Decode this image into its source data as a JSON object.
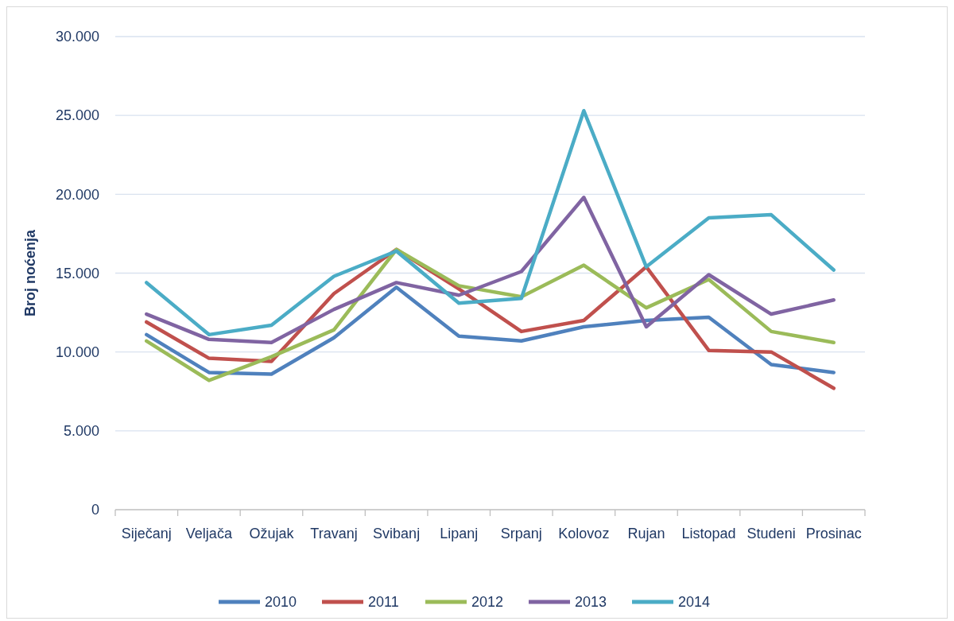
{
  "chart_data": {
    "type": "line",
    "ylabel": "Broj noćenja",
    "categories": [
      "Siječanj",
      "Veljača",
      "Ožujak",
      "Travanj",
      "Svibanj",
      "Lipanj",
      "Srpanj",
      "Kolovoz",
      "Rujan",
      "Listopad",
      "Studeni",
      "Prosinac"
    ],
    "series": [
      {
        "name": "2010",
        "color": "#4f81bd",
        "values": [
          11100,
          8700,
          8600,
          10900,
          14100,
          11000,
          10700,
          11600,
          12000,
          12200,
          9200,
          8700
        ]
      },
      {
        "name": "2011",
        "color": "#c0504d",
        "values": [
          11900,
          9600,
          9400,
          13700,
          16500,
          14000,
          11300,
          12000,
          15400,
          10100,
          10000,
          7700
        ]
      },
      {
        "name": "2012",
        "color": "#9bbb59",
        "values": [
          10700,
          8200,
          9700,
          11400,
          16500,
          14200,
          13500,
          15500,
          12800,
          14600,
          11300,
          10600
        ]
      },
      {
        "name": "2013",
        "color": "#8064a2",
        "values": [
          12400,
          10800,
          10600,
          12700,
          14400,
          13600,
          15100,
          19800,
          11600,
          14900,
          12400,
          13300
        ]
      },
      {
        "name": "2014",
        "color": "#4bacc6",
        "values": [
          14400,
          11100,
          11700,
          14800,
          16400,
          13100,
          13400,
          25300,
          15400,
          18500,
          18700,
          15200
        ]
      }
    ],
    "ylim": [
      0,
      30000
    ],
    "yticks": [
      {
        "value": 0,
        "label": "0"
      },
      {
        "value": 5000,
        "label": "5.000"
      },
      {
        "value": 10000,
        "label": "10.000"
      },
      {
        "value": 15000,
        "label": "15.000"
      },
      {
        "value": 20000,
        "label": "20.000"
      },
      {
        "value": 25000,
        "label": "25.000"
      },
      {
        "value": 30000,
        "label": "30.000"
      }
    ],
    "grid": "y",
    "legend": "bottom",
    "marker": "none",
    "line_style": "solid"
  }
}
